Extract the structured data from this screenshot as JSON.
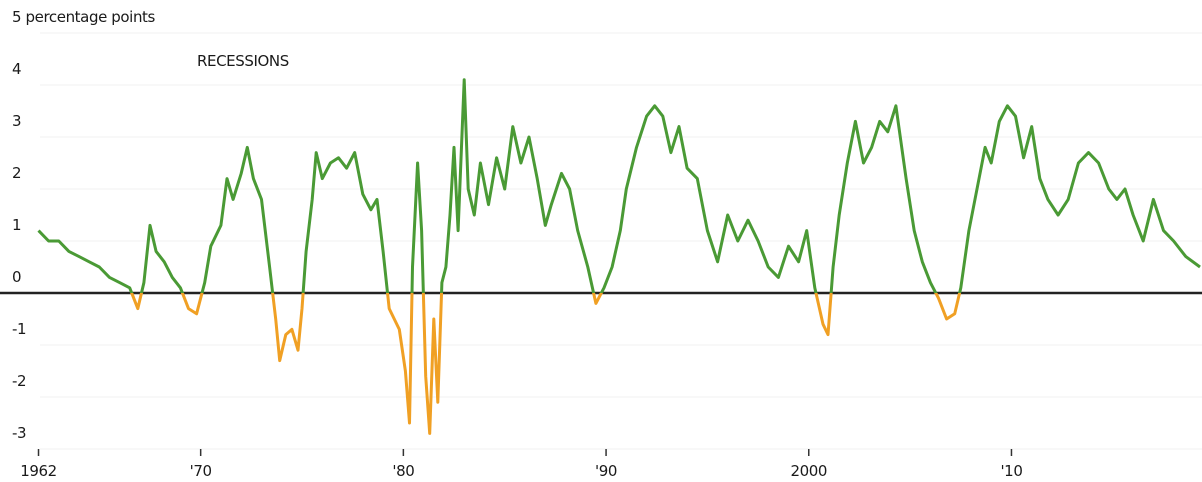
{
  "chart_data": {
    "type": "line",
    "annotation": "RECESSIONS",
    "xlim": [
      1960.1,
      2019.4
    ],
    "xticks": [
      {
        "value": 1962,
        "label": "1962"
      },
      {
        "value": 1970,
        "label": "'70"
      },
      {
        "value": 1980,
        "label": "'80"
      },
      {
        "value": 1990,
        "label": "'90"
      },
      {
        "value": 2000,
        "label": "2000"
      },
      {
        "value": 2010,
        "label": "'10"
      }
    ],
    "ylim": [
      -3.2,
      5
    ],
    "yticks": [
      -3,
      -2,
      -1,
      0,
      1,
      2,
      3,
      4,
      {
        "value": 5,
        "label": "5 percentage points"
      }
    ],
    "grid": true,
    "negative_color": "#f0a024",
    "series": [
      {
        "color": "#4a9a35",
        "x": [
          1962.0,
          1962.5,
          1963.0,
          1963.5,
          1964.0,
          1964.5,
          1965.0,
          1965.5,
          1966.0,
          1966.5,
          1966.9,
          1967.2,
          1967.5,
          1967.8,
          1968.2,
          1968.6,
          1969.0,
          1969.4,
          1969.8,
          1970.2,
          1970.5,
          1971.0,
          1971.3,
          1971.6,
          1972.0,
          1972.3,
          1972.6,
          1973.0,
          1973.4,
          1973.7,
          1973.9,
          1974.2,
          1974.5,
          1974.8,
          1975.0,
          1975.2,
          1975.5,
          1975.7,
          1976.0,
          1976.4,
          1976.8,
          1977.2,
          1977.6,
          1978.0,
          1978.4,
          1978.7,
          1979.0,
          1979.3,
          1979.8,
          1980.1,
          1980.3,
          1980.45,
          1980.7,
          1980.9,
          1981.1,
          1981.3,
          1981.5,
          1981.7,
          1981.9,
          1982.1,
          1982.3,
          1982.5,
          1982.7,
          1983.0,
          1983.2,
          1983.5,
          1983.8,
          1984.2,
          1984.6,
          1985.0,
          1985.4,
          1985.8,
          1986.2,
          1986.6,
          1987.0,
          1987.3,
          1987.8,
          1988.2,
          1988.6,
          1989.1,
          1989.5,
          1989.9,
          1990.3,
          1990.7,
          1991.0,
          1991.5,
          1992.0,
          1992.4,
          1992.8,
          1993.2,
          1993.6,
          1994.0,
          1994.5,
          1995.0,
          1995.5,
          1996.0,
          1996.5,
          1997.0,
          1997.5,
          1998.0,
          1998.5,
          1999.0,
          1999.5,
          1999.9,
          2000.3,
          2000.7,
          2000.95,
          2001.2,
          2001.5,
          2001.9,
          2002.3,
          2002.7,
          2003.1,
          2003.5,
          2003.9,
          2004.3,
          2004.8,
          2005.2,
          2005.6,
          2006.0,
          2006.4,
          2006.8,
          2007.2,
          2007.5,
          2007.9,
          2008.3,
          2008.7,
          2009.0,
          2009.4,
          2009.8,
          2010.2,
          2010.6,
          2011.0,
          2011.4,
          2011.8,
          2012.3,
          2012.8,
          2013.3,
          2013.8,
          2014.3,
          2014.8,
          2015.2,
          2015.6,
          2016.0,
          2016.5,
          2017.0,
          2017.5,
          2018.0,
          2018.6,
          2019.3
        ],
        "values": [
          1.2,
          1.0,
          1.0,
          0.8,
          0.7,
          0.6,
          0.5,
          0.3,
          0.2,
          0.1,
          -0.3,
          0.2,
          1.3,
          0.8,
          0.6,
          0.3,
          0.1,
          -0.3,
          -0.4,
          0.2,
          0.9,
          1.3,
          2.2,
          1.8,
          2.3,
          2.8,
          2.2,
          1.8,
          0.5,
          -0.5,
          -1.3,
          -0.8,
          -0.7,
          -1.1,
          -0.3,
          0.8,
          1.8,
          2.7,
          2.2,
          2.5,
          2.6,
          2.4,
          2.7,
          1.9,
          1.6,
          1.8,
          0.8,
          -0.3,
          -0.7,
          -1.5,
          -2.5,
          0.5,
          2.5,
          1.2,
          -1.6,
          -2.7,
          -0.5,
          -2.1,
          0.2,
          0.5,
          1.5,
          2.8,
          1.2,
          4.1,
          2.0,
          1.5,
          2.5,
          1.7,
          2.6,
          2.0,
          3.2,
          2.5,
          3.0,
          2.2,
          1.3,
          1.7,
          2.3,
          2.0,
          1.2,
          0.5,
          -0.2,
          0.1,
          0.5,
          1.2,
          2.0,
          2.8,
          3.4,
          3.6,
          3.4,
          2.7,
          3.2,
          2.4,
          2.2,
          1.2,
          0.6,
          1.5,
          1.0,
          1.4,
          1.0,
          0.5,
          0.3,
          0.9,
          0.6,
          1.2,
          0.1,
          -0.6,
          -0.8,
          0.5,
          1.5,
          2.5,
          3.3,
          2.5,
          2.8,
          3.3,
          3.1,
          3.6,
          2.2,
          1.2,
          0.6,
          0.2,
          -0.1,
          -0.5,
          -0.4,
          0.1,
          1.2,
          2.0,
          2.8,
          2.5,
          3.3,
          3.6,
          3.4,
          2.6,
          3.2,
          2.2,
          1.8,
          1.5,
          1.8,
          2.5,
          2.7,
          2.5,
          2.0,
          1.8,
          2.0,
          1.5,
          1.0,
          1.8,
          1.2,
          1.0,
          0.7,
          0.5
        ]
      }
    ]
  }
}
